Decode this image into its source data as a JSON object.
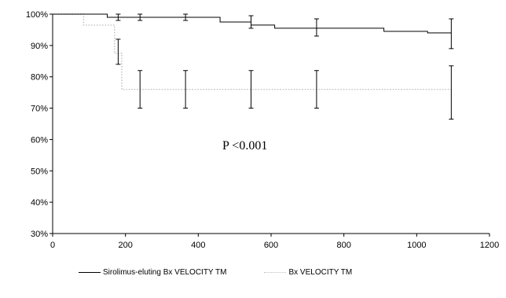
{
  "chart_data": {
    "type": "line",
    "xlim": [
      0,
      1200
    ],
    "ylim": [
      30,
      100
    ],
    "x_ticks": [
      0,
      200,
      400,
      600,
      800,
      1000,
      1200
    ],
    "y_ticks": [
      30,
      40,
      50,
      60,
      70,
      80,
      90,
      100
    ],
    "x_tick_labels": [
      "0",
      "200",
      "400",
      "600",
      "800",
      "1000",
      "1200"
    ],
    "y_tick_labels": [
      "30%",
      "40%",
      "50%",
      "60%",
      "70%",
      "80%",
      "90%",
      "100%"
    ],
    "grid": false,
    "annotation": "P <0.001",
    "series": [
      {
        "name": "Sirolimus-eluting Bx VELOCITY TM",
        "color": "#000000",
        "line_style": "solid",
        "step_x": [
          0,
          150,
          150,
          360,
          360,
          460,
          460,
          545,
          545,
          610,
          610,
          910,
          910,
          1030,
          1030,
          1095
        ],
        "step_y": [
          100,
          100,
          99,
          99,
          99,
          99,
          97.5,
          97.5,
          96.5,
          96.5,
          95.5,
          95.5,
          94.5,
          94.5,
          94,
          94
        ],
        "error_bars": [
          {
            "x": 180,
            "y": 99,
            "low": 98,
            "high": 100
          },
          {
            "x": 240,
            "y": 99,
            "low": 98,
            "high": 100
          },
          {
            "x": 365,
            "y": 99,
            "low": 98,
            "high": 100
          },
          {
            "x": 545,
            "y": 97.5,
            "low": 95.5,
            "high": 99.5
          },
          {
            "x": 725,
            "y": 95.5,
            "low": 93,
            "high": 98.5
          },
          {
            "x": 1095,
            "y": 94,
            "low": 89,
            "high": 98.5
          }
        ]
      },
      {
        "name": "Bx VELOCITY TM",
        "color": "#bdbdbd",
        "line_style": "dotted",
        "step_x": [
          0,
          85,
          85,
          170,
          170,
          190,
          190,
          1095
        ],
        "step_y": [
          100,
          100,
          96.5,
          96.5,
          87.5,
          87.5,
          76,
          76
        ],
        "error_bars": [
          {
            "x": 180,
            "y": 88,
            "low": 84,
            "high": 92
          },
          {
            "x": 240,
            "y": 76,
            "low": 70,
            "high": 82
          },
          {
            "x": 365,
            "y": 76,
            "low": 70,
            "high": 82
          },
          {
            "x": 545,
            "y": 76,
            "low": 70,
            "high": 82
          },
          {
            "x": 725,
            "y": 76,
            "low": 70,
            "high": 82
          },
          {
            "x": 1095,
            "y": 75,
            "low": 66.5,
            "high": 83.5
          }
        ]
      }
    ]
  }
}
